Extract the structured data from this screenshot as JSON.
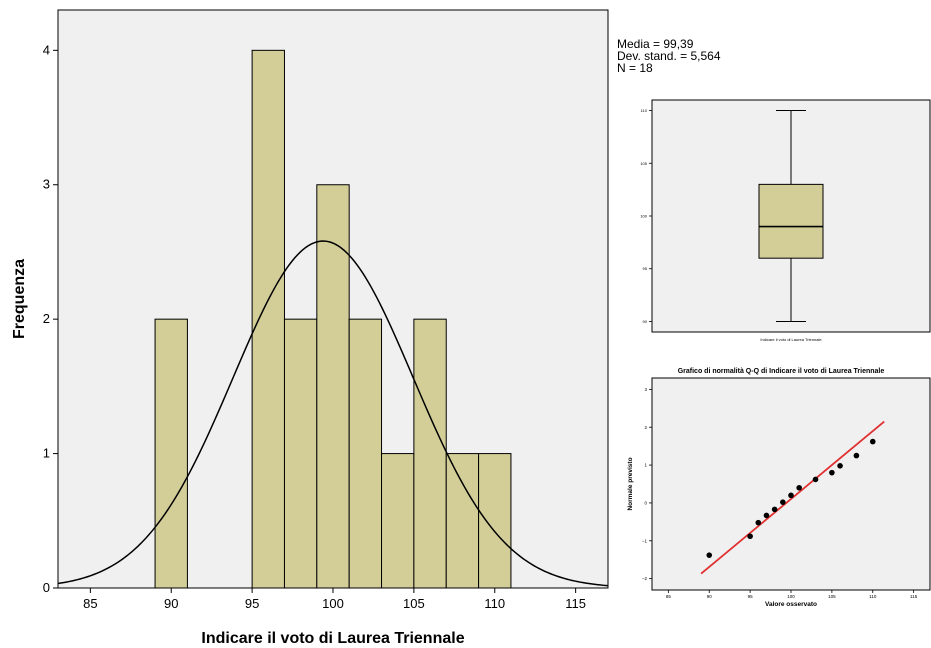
{
  "stats": {
    "mean": "Media = 99,39",
    "sd": "Dev. stand. = 5,564",
    "n": "N = 18"
  },
  "colors": {
    "plot_bg": "#f0f0f0",
    "bar_fill": "#d3ce98",
    "bar_stroke": "#000000",
    "normal_curve": "#000000",
    "qq_line": "#e03030",
    "qq_point": "#000000"
  },
  "chart_data": [
    {
      "type": "bar",
      "subtype": "histogram",
      "title": "",
      "xlabel": "Indicare il voto di Laurea Triennale",
      "ylabel": "Frequenza",
      "xlim": [
        83,
        117
      ],
      "ylim": [
        0,
        4.3
      ],
      "xticks": [
        85,
        90,
        95,
        100,
        105,
        110,
        115
      ],
      "yticks": [
        0,
        1,
        2,
        3,
        4
      ],
      "bin_width": 2,
      "bins": [
        {
          "start": 89,
          "end": 91,
          "count": 2
        },
        {
          "start": 95,
          "end": 97,
          "count": 4
        },
        {
          "start": 97,
          "end": 99,
          "count": 2
        },
        {
          "start": 99,
          "end": 101,
          "count": 3
        },
        {
          "start": 101,
          "end": 103,
          "count": 2
        },
        {
          "start": 103,
          "end": 105,
          "count": 1
        },
        {
          "start": 105,
          "end": 107,
          "count": 2
        },
        {
          "start": 107,
          "end": 109,
          "count": 1
        },
        {
          "start": 109,
          "end": 111,
          "count": 1
        }
      ],
      "normal_curve": {
        "mean": 99.39,
        "sd": 5.564,
        "n": 18
      },
      "grid": false
    },
    {
      "type": "boxplot",
      "title": "",
      "xlabel": "Indicare il voto di Laurea Triennale",
      "ylim": [
        89,
        111
      ],
      "yticks": [
        90,
        95,
        100,
        105,
        110
      ],
      "min": 90,
      "q1": 96,
      "median": 99,
      "q3": 103,
      "max": 110
    },
    {
      "type": "scatter",
      "title": "Grafico di normalità Q-Q di Indicare il voto di Laurea Triennale",
      "xlabel": "Valore osservato",
      "ylabel": "Normale previsto",
      "xlim": [
        83,
        117
      ],
      "ylim": [
        -2.3,
        3.3
      ],
      "xticks": [
        85,
        90,
        95,
        100,
        105,
        110,
        115
      ],
      "yticks": [
        -2,
        -1,
        0,
        1,
        2,
        3
      ],
      "points": [
        {
          "x": 90,
          "y": -1.38
        },
        {
          "x": 95,
          "y": -0.88
        },
        {
          "x": 96,
          "y": -0.52
        },
        {
          "x": 97,
          "y": -0.33
        },
        {
          "x": 98,
          "y": -0.17
        },
        {
          "x": 99,
          "y": 0.02
        },
        {
          "x": 100,
          "y": 0.2
        },
        {
          "x": 101,
          "y": 0.4
        },
        {
          "x": 103,
          "y": 0.62
        },
        {
          "x": 105,
          "y": 0.8
        },
        {
          "x": 106,
          "y": 0.98
        },
        {
          "x": 108,
          "y": 1.25
        },
        {
          "x": 110,
          "y": 1.62
        }
      ],
      "reference_line": {
        "x": [
          89,
          111.4
        ],
        "y": [
          -1.87,
          2.15
        ]
      }
    }
  ]
}
